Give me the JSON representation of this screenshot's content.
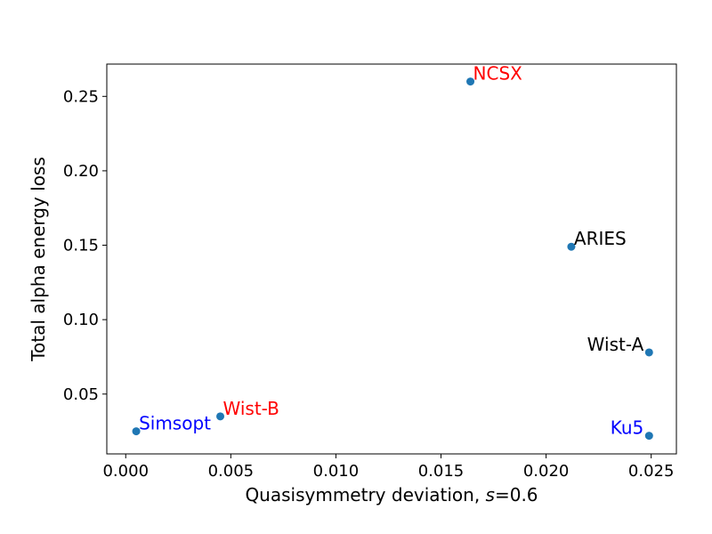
{
  "chart_data": {
    "type": "scatter",
    "xlabel": "Quasisymmetry deviation, ",
    "xlabel_italic": "s",
    "xlabel_suffix": "=0.6",
    "ylabel": "Total alpha energy loss",
    "xlim": [
      -0.0009,
      0.0262
    ],
    "ylim": [
      0.0098,
      0.2717
    ],
    "xticks": [
      0.0,
      0.005,
      0.01,
      0.015,
      0.02,
      0.025
    ],
    "xtick_labels": [
      "0.000",
      "0.005",
      "0.010",
      "0.015",
      "0.020",
      "0.025"
    ],
    "yticks": [
      0.05,
      0.1,
      0.15,
      0.2,
      0.25
    ],
    "ytick_labels": [
      "0.05",
      "0.10",
      "0.15",
      "0.20",
      "0.25"
    ],
    "grid": false,
    "marker_color": "#1f77b4",
    "points": [
      {
        "label": "NCSX",
        "x": 0.0164,
        "y": 0.26,
        "color": "#ff0000",
        "anchor": "start"
      },
      {
        "label": "ARIES",
        "x": 0.0212,
        "y": 0.149,
        "color": "#000000",
        "anchor": "start"
      },
      {
        "label": "Wist-A",
        "x": 0.0249,
        "y": 0.078,
        "color": "#000000",
        "anchor": "end"
      },
      {
        "label": "Wist-B",
        "x": 0.0045,
        "y": 0.035,
        "color": "#ff0000",
        "anchor": "start"
      },
      {
        "label": "Simsopt",
        "x": 0.0005,
        "y": 0.025,
        "color": "#0000ff",
        "anchor": "start"
      },
      {
        "label": "Ku5",
        "x": 0.0249,
        "y": 0.022,
        "color": "#0000ff",
        "anchor": "end"
      }
    ]
  }
}
